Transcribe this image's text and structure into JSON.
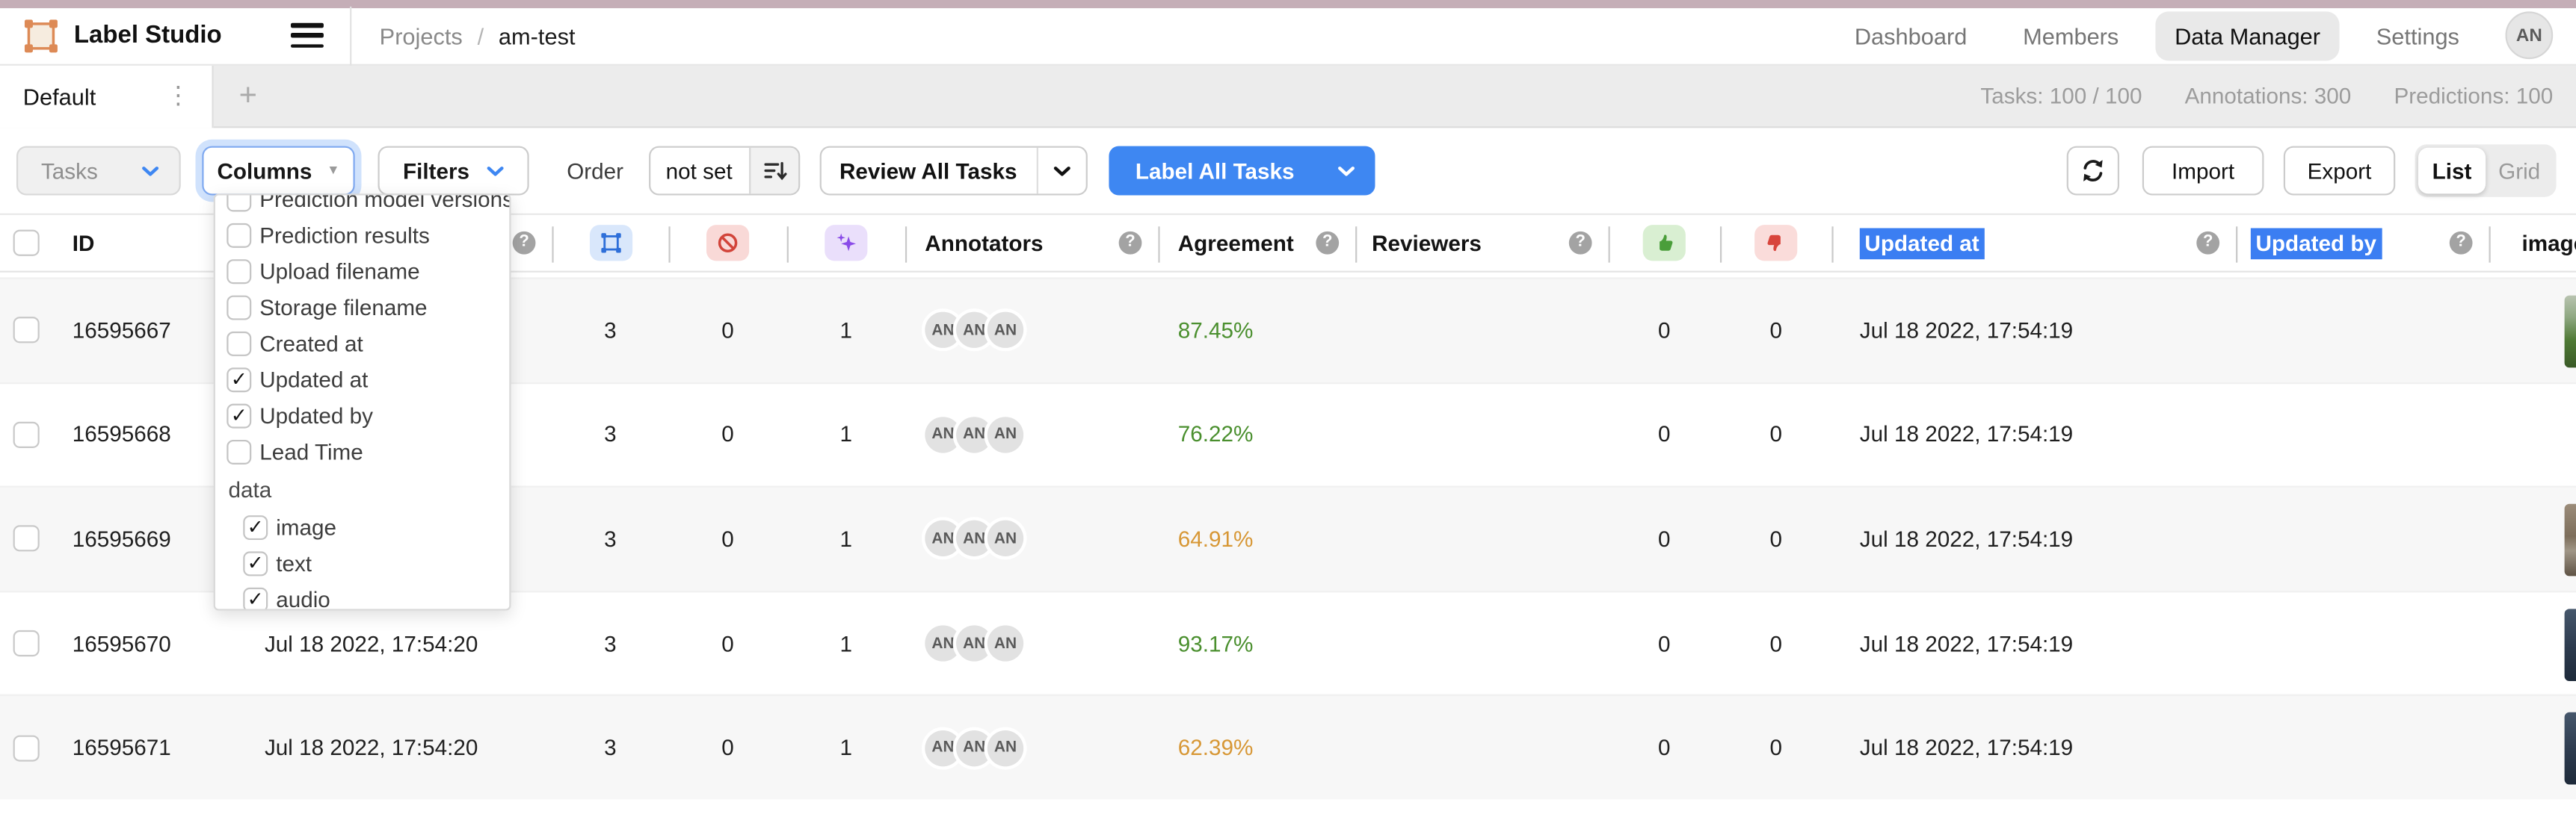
{
  "theme": {
    "accent_blue": "#3e87f2",
    "selection_highlight": "#3b7ef2",
    "top_strip": "#c5aeb7",
    "agreement_colors": {
      "green": "#4a8f2e",
      "orange": "#d79735"
    },
    "icon_colors": {
      "annotations": "#2e6fd9",
      "cancelled": "#d2443a",
      "predictions": "#8a4be8",
      "accepted": "#4a9e3a",
      "rejected": "#d8453c"
    }
  },
  "topbar": {
    "logo_label": "Label Studio",
    "breadcrumb": {
      "section": "Projects",
      "separator": "/",
      "project": "am-test"
    },
    "nav_items": [
      {
        "label": "Dashboard",
        "active": false
      },
      {
        "label": "Members",
        "active": false
      },
      {
        "label": "Data Manager",
        "active": true
      },
      {
        "label": "Settings",
        "active": false
      }
    ],
    "user_initials": "AN"
  },
  "view_tabs": {
    "active_tab_label": "Default",
    "stats": [
      "Tasks: 100 / 100",
      "Annotations: 300",
      "Predictions: 100"
    ]
  },
  "toolbar": {
    "tasks_button": "Tasks",
    "columns_button": "Columns",
    "filters_button": "Filters",
    "order_label": "Order",
    "order_value": "not set",
    "review_all_button": "Review All Tasks",
    "label_all_button": "Label All Tasks",
    "import_button": "Import",
    "export_button": "Export",
    "view_toggle": {
      "list": "List",
      "grid": "Grid",
      "active": "List"
    }
  },
  "columns_dropdown": {
    "items": [
      {
        "label": "Prediction model versions",
        "checked": false,
        "clipped": true
      },
      {
        "label": "Prediction results",
        "checked": false
      },
      {
        "label": "Upload filename",
        "checked": false
      },
      {
        "label": "Storage filename",
        "checked": false
      },
      {
        "label": "Created at",
        "checked": false
      },
      {
        "label": "Updated at",
        "checked": true
      },
      {
        "label": "Updated by",
        "checked": true
      },
      {
        "label": "Lead Time",
        "checked": false
      }
    ],
    "section_label": "data",
    "data_items": [
      {
        "label": "image",
        "checked": true
      },
      {
        "label": "text",
        "checked": true
      },
      {
        "label": "audio",
        "checked": true
      }
    ]
  },
  "table": {
    "header": {
      "id": "ID",
      "completed": "",
      "annotators": "Annotators",
      "agreement": "Agreement",
      "reviewers": "Reviewers",
      "updated_at": "Updated at",
      "updated_by": "Updated by",
      "image": "image"
    },
    "rows": [
      {
        "id": "16595667",
        "completed": "",
        "annotations": "3",
        "cancelled": "0",
        "predictions": "1",
        "annotators": [
          "AN",
          "AN",
          "AN"
        ],
        "agreement": "87.45%",
        "agreement_color": "green",
        "reviewers": "",
        "accepted": "0",
        "rejected": "0",
        "updated_at": "Jul 18 2022, 17:54:19",
        "updated_by": "",
        "thumb": "green-field"
      },
      {
        "id": "16595668",
        "completed": "",
        "annotations": "3",
        "cancelled": "0",
        "predictions": "1",
        "annotators": [
          "AN",
          "AN",
          "AN"
        ],
        "agreement": "76.22%",
        "agreement_color": "green",
        "reviewers": "",
        "accepted": "0",
        "rejected": "0",
        "updated_at": "Jul 18 2022, 17:54:19",
        "updated_by": "",
        "thumb": ""
      },
      {
        "id": "16595669",
        "completed": "",
        "annotations": "3",
        "cancelled": "0",
        "predictions": "1",
        "annotators": [
          "AN",
          "AN",
          "AN"
        ],
        "agreement": "64.91%",
        "agreement_color": "orange",
        "reviewers": "",
        "accepted": "0",
        "rejected": "0",
        "updated_at": "Jul 18 2022, 17:54:19",
        "updated_by": "",
        "thumb": "brown-dirt"
      },
      {
        "id": "16595670",
        "completed": "Jul 18 2022, 17:54:20",
        "annotations": "3",
        "cancelled": "0",
        "predictions": "1",
        "annotators": [
          "AN",
          "AN",
          "AN"
        ],
        "agreement": "93.17%",
        "agreement_color": "green",
        "reviewers": "",
        "accepted": "0",
        "rejected": "0",
        "updated_at": "Jul 18 2022, 17:54:19",
        "updated_by": "",
        "thumb": "dark-blue"
      },
      {
        "id": "16595671",
        "completed": "Jul 18 2022, 17:54:20",
        "annotations": "3",
        "cancelled": "0",
        "predictions": "1",
        "annotators": [
          "AN",
          "AN",
          "AN"
        ],
        "agreement": "62.39%",
        "agreement_color": "orange",
        "reviewers": "",
        "accepted": "0",
        "rejected": "0",
        "updated_at": "Jul 18 2022, 17:54:19",
        "updated_by": "",
        "thumb": "dark-blue"
      }
    ]
  }
}
